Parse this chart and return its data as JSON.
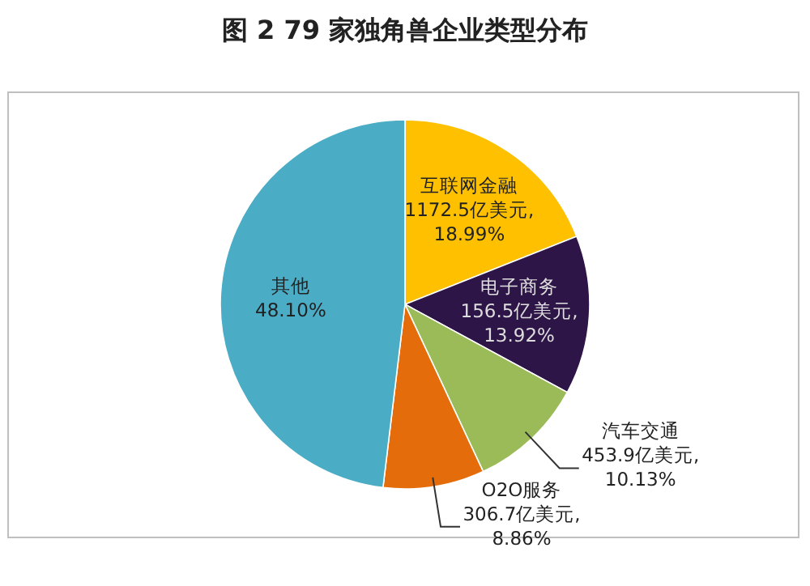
{
  "chart_data": {
    "type": "pie",
    "title": "图 2  79 家独角兽企业类型分布",
    "categories": [
      "互联网金融",
      "电子商务",
      "汽车交通",
      "O2O服务",
      "其他"
    ],
    "values": [
      18.99,
      13.92,
      10.13,
      8.86,
      48.1
    ],
    "colors": [
      "#ffc000",
      "#2e1547",
      "#9bbb59",
      "#e46c0a",
      "#4bacc6"
    ],
    "value_labels": [
      "1172.5亿美元, 18.99%",
      "156.5亿美元, 13.92%",
      "453.9亿美元, 10.13%",
      "306.7亿美元, 8.86%",
      "48.10%"
    ]
  }
}
